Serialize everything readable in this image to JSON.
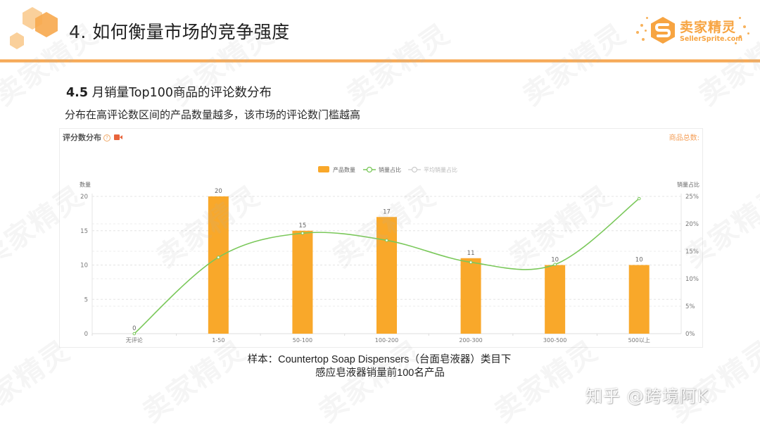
{
  "slide": {
    "title": "4. 如何衡量市场的竞争强度",
    "section_number": "4.5",
    "section_title": "月销量Top100商品的评论数分布",
    "subtitle": "分布在高评论数区间的产品数量越多，该市场的评论数门槛越高"
  },
  "logo": {
    "cn": "卖家精灵",
    "en": "SellerSprite.com",
    "icon": "s-hexagon-logo-icon"
  },
  "card": {
    "title": "评分数分布",
    "help_icon": "question-circle-icon",
    "video_icon": "video-camera-icon",
    "total_label": "商品总数:"
  },
  "caption": {
    "line1": "样本：Countertop Soap Dispensers（台面皂液器）类目下",
    "line2": "感应皂液器销量前100名产品"
  },
  "watermark": {
    "text": "卖家精灵",
    "zhihu": "知乎 @跨境阿K"
  },
  "colors": {
    "accent_orange": "#f5a24b",
    "bar": "#f9a82a",
    "line": "#7ac85a",
    "avg_line": "#cccccc"
  },
  "chart_data": {
    "type": "bar",
    "title": "评分数分布",
    "categories": [
      "无评论",
      "1-50",
      "50-100",
      "100-200",
      "200-300",
      "300-500",
      "500以上"
    ],
    "series": [
      {
        "name": "产品数量",
        "type": "bar",
        "axis": "left",
        "values": [
          0,
          20,
          15,
          17,
          11,
          10,
          10
        ]
      },
      {
        "name": "销量占比",
        "type": "line",
        "axis": "right",
        "unit": "%",
        "values": [
          0,
          13.9,
          18.3,
          17.0,
          13.0,
          12.6,
          24.6
        ]
      },
      {
        "name": "平均销量占比",
        "type": "line",
        "axis": "right",
        "unit": "%",
        "values": []
      }
    ],
    "legend": [
      "产品数量",
      "销量占比",
      "平均销量占比"
    ],
    "legend_position": "top-center",
    "ylabel_left": "数量",
    "ylabel_right": "销量占比",
    "ylim_left": [
      0,
      20
    ],
    "yticks_left": [
      "0",
      "5",
      "10",
      "15",
      "20"
    ],
    "ylim_right": [
      0,
      25
    ],
    "yticks_right": [
      "0%",
      "5%",
      "10%",
      "15%",
      "20%",
      "25%"
    ],
    "grid": true,
    "data_labels": [
      "0",
      "20",
      "15",
      "17",
      "11",
      "10",
      "10"
    ]
  }
}
